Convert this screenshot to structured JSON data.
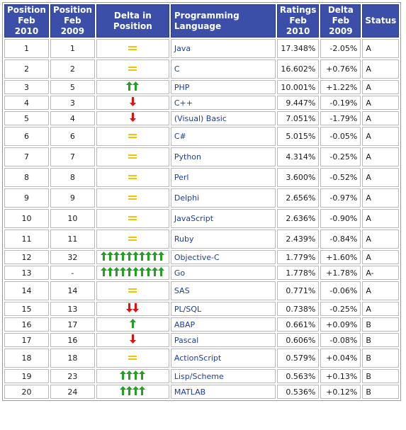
{
  "headers": {
    "pos2010": [
      "Position",
      "Feb 2010"
    ],
    "pos2009": [
      "Position",
      "Feb 2009"
    ],
    "delta_pos": "Delta in Position",
    "language": "Programming Language",
    "ratings": [
      "Ratings",
      "Feb 2010"
    ],
    "delta_rating": [
      "Delta",
      "Feb 2009"
    ],
    "status": "Status"
  },
  "colors": {
    "header_bg": "#3b4fa8",
    "up_arrow": "#22a022",
    "down_arrow": "#e01010",
    "equal": "#f5c400",
    "link": "#1f3ca0"
  },
  "rows": [
    {
      "pos2010": "1",
      "pos2009": "1",
      "delta": {
        "dir": "same",
        "count": 1
      },
      "language": "Java",
      "rating": "17.348%",
      "change": "-2.05%",
      "status": "A"
    },
    {
      "pos2010": "2",
      "pos2009": "2",
      "delta": {
        "dir": "same",
        "count": 1
      },
      "language": "C",
      "rating": "16.602%",
      "change": "+0.76%",
      "status": "A"
    },
    {
      "pos2010": "3",
      "pos2009": "5",
      "delta": {
        "dir": "up",
        "count": 2
      },
      "language": "PHP",
      "rating": "10.001%",
      "change": "+1.22%",
      "status": "A"
    },
    {
      "pos2010": "4",
      "pos2009": "3",
      "delta": {
        "dir": "down",
        "count": 1
      },
      "language": "C++",
      "rating": "9.447%",
      "change": "-0.19%",
      "status": "A"
    },
    {
      "pos2010": "5",
      "pos2009": "4",
      "delta": {
        "dir": "down",
        "count": 1
      },
      "language": "(Visual) Basic",
      "rating": "7.051%",
      "change": "-1.79%",
      "status": "A"
    },
    {
      "pos2010": "6",
      "pos2009": "6",
      "delta": {
        "dir": "same",
        "count": 1
      },
      "language": "C#",
      "rating": "5.015%",
      "change": "-0.05%",
      "status": "A"
    },
    {
      "pos2010": "7",
      "pos2009": "7",
      "delta": {
        "dir": "same",
        "count": 1
      },
      "language": "Python",
      "rating": "4.314%",
      "change": "-0.25%",
      "status": "A"
    },
    {
      "pos2010": "8",
      "pos2009": "8",
      "delta": {
        "dir": "same",
        "count": 1
      },
      "language": "Perl",
      "rating": "3.600%",
      "change": "-0.52%",
      "status": "A"
    },
    {
      "pos2010": "9",
      "pos2009": "9",
      "delta": {
        "dir": "same",
        "count": 1
      },
      "language": "Delphi",
      "rating": "2.656%",
      "change": "-0.97%",
      "status": "A"
    },
    {
      "pos2010": "10",
      "pos2009": "10",
      "delta": {
        "dir": "same",
        "count": 1
      },
      "language": "JavaScript",
      "rating": "2.636%",
      "change": "-0.90%",
      "status": "A"
    },
    {
      "pos2010": "11",
      "pos2009": "11",
      "delta": {
        "dir": "same",
        "count": 1
      },
      "language": "Ruby",
      "rating": "2.439%",
      "change": "-0.84%",
      "status": "A"
    },
    {
      "pos2010": "12",
      "pos2009": "32",
      "delta": {
        "dir": "up",
        "count": 10
      },
      "language": "Objective-C",
      "rating": "1.779%",
      "change": "+1.60%",
      "status": "A"
    },
    {
      "pos2010": "13",
      "pos2009": "-",
      "delta": {
        "dir": "up",
        "count": 10
      },
      "language": "Go",
      "rating": "1.778%",
      "change": "+1.78%",
      "status": "A-"
    },
    {
      "pos2010": "14",
      "pos2009": "14",
      "delta": {
        "dir": "same",
        "count": 1
      },
      "language": "SAS",
      "rating": "0.771%",
      "change": "-0.06%",
      "status": "A"
    },
    {
      "pos2010": "15",
      "pos2009": "13",
      "delta": {
        "dir": "down",
        "count": 2
      },
      "language": "PL/SQL",
      "rating": "0.738%",
      "change": "-0.25%",
      "status": "A"
    },
    {
      "pos2010": "16",
      "pos2009": "17",
      "delta": {
        "dir": "up",
        "count": 1
      },
      "language": "ABAP",
      "rating": "0.661%",
      "change": "+0.09%",
      "status": "B"
    },
    {
      "pos2010": "17",
      "pos2009": "16",
      "delta": {
        "dir": "down",
        "count": 1
      },
      "language": "Pascal",
      "rating": "0.606%",
      "change": "-0.08%",
      "status": "B"
    },
    {
      "pos2010": "18",
      "pos2009": "18",
      "delta": {
        "dir": "same",
        "count": 1
      },
      "language": "ActionScript",
      "rating": "0.579%",
      "change": "+0.04%",
      "status": "B"
    },
    {
      "pos2010": "19",
      "pos2009": "23",
      "delta": {
        "dir": "up",
        "count": 4
      },
      "language": "Lisp/Scheme",
      "rating": "0.563%",
      "change": "+0.13%",
      "status": "B"
    },
    {
      "pos2010": "20",
      "pos2009": "24",
      "delta": {
        "dir": "up",
        "count": 4
      },
      "language": "MATLAB",
      "rating": "0.536%",
      "change": "+0.12%",
      "status": "B"
    }
  ]
}
